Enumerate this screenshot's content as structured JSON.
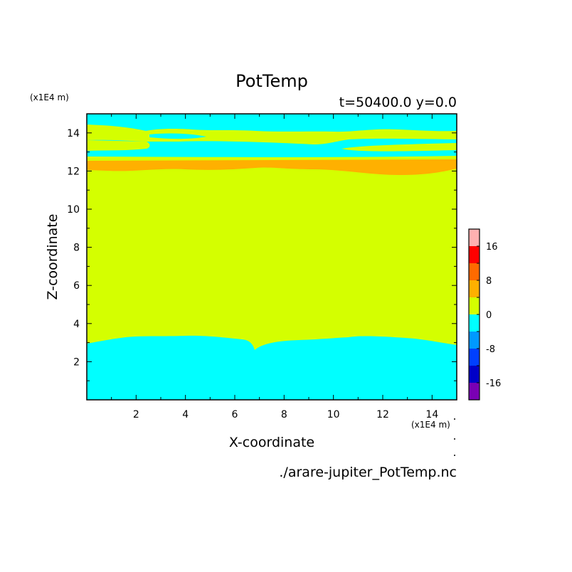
{
  "chart_data": {
    "type": "heatmap",
    "title": "PotTemp",
    "subtitle": "t=50400.0 y=0.0",
    "xlabel": "X-coordinate",
    "ylabel": "Z-coordinate",
    "x_unit": "(x1E4 m)",
    "z_unit": "(x1E4 m)",
    "source_file": "./arare-jupiter_PotTemp.nc",
    "xlim": [
      0,
      15
    ],
    "ylim": [
      0,
      15
    ],
    "x_ticks": [
      2,
      4,
      6,
      8,
      10,
      12,
      14
    ],
    "y_ticks": [
      2,
      4,
      6,
      8,
      10,
      12,
      14
    ],
    "contour_regions": [
      {
        "level": "0 to 4",
        "color": "#d4ff00",
        "z_range": [
          3.0,
          12.2
        ],
        "desc": "main interior"
      },
      {
        "level": "-4 to 0",
        "color": "#00ffff",
        "z_range": [
          0,
          3.3
        ],
        "desc": "lower layer"
      },
      {
        "level": "4 to 8",
        "color": "#ffb000",
        "z_range": [
          11.8,
          12.6
        ],
        "desc": "thin warm band"
      },
      {
        "level": "0 to 4",
        "color": "#d4ff00",
        "z_range": [
          12.4,
          13.0
        ],
        "desc": "upper band"
      },
      {
        "level": "-4 to 0",
        "color": "#00ffff",
        "z_range": [
          13.0,
          13.4
        ],
        "desc": "upper cool band"
      },
      {
        "level": "0 to 4",
        "color": "#d4ff00",
        "z_range": [
          13.3,
          14.2
        ],
        "desc": "upper band"
      },
      {
        "level": "-4 to 0",
        "color": "#00ffff",
        "z_range": [
          14.2,
          15.0
        ],
        "desc": "top cool band"
      }
    ],
    "colorbar": {
      "ticks": [
        16,
        8,
        0,
        -8,
        -16
      ],
      "levels": [
        20,
        16,
        12,
        8,
        4,
        0,
        -4,
        -8,
        -12,
        -16,
        -20
      ],
      "colors": [
        "#ffb0b0",
        "#ff0000",
        "#ff6a00",
        "#ffb000",
        "#d4ff00",
        "#00ffff",
        "#0099ff",
        "#0040ff",
        "#0000c8",
        "#7a00b4"
      ]
    }
  }
}
